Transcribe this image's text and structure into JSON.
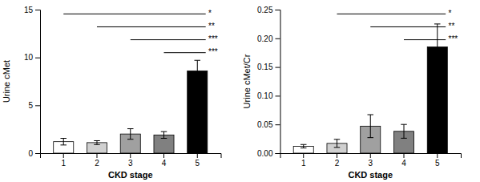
{
  "chart_data": [
    {
      "type": "bar",
      "categories": [
        "1",
        "2",
        "3",
        "4",
        "5"
      ],
      "values": [
        1.2,
        1.1,
        2.0,
        1.9,
        8.6
      ],
      "errors": [
        0.35,
        0.2,
        0.55,
        0.35,
        1.1
      ],
      "colors": [
        "#ffffff",
        "#d0d0d0",
        "#a0a0a0",
        "#808080",
        "#000000"
      ],
      "xlabel": "CKD stage",
      "ylabel": "Urine cMet",
      "ylim": [
        0,
        15
      ],
      "yticks": [
        0,
        5,
        10,
        15
      ],
      "annotations": [
        {
          "text": "*",
          "x1": "1",
          "x2": "5",
          "y": 14.55
        },
        {
          "text": "**",
          "x1": "2",
          "x2": "5",
          "y": 13.2
        },
        {
          "text": "***",
          "x1": "3",
          "x2": "5",
          "y": 11.85
        },
        {
          "text": "***",
          "x1": "4",
          "x2": "5",
          "y": 10.5
        }
      ]
    },
    {
      "type": "bar",
      "categories": [
        "1",
        "2",
        "3",
        "4",
        "5"
      ],
      "values": [
        0.012,
        0.017,
        0.047,
        0.038,
        0.185
      ],
      "errors": [
        0.003,
        0.007,
        0.02,
        0.012,
        0.04
      ],
      "colors": [
        "#ffffff",
        "#d0d0d0",
        "#a0a0a0",
        "#808080",
        "#000000"
      ],
      "xlabel": "CKD stage",
      "ylabel": "Urine cMet/Cr",
      "ylim": [
        0,
        0.25
      ],
      "yticks": [
        {
          "value": 0,
          "label": "0.00"
        },
        {
          "value": 0.05,
          "label": "0.05"
        },
        {
          "value": 0.1,
          "label": "0.10"
        },
        {
          "value": 0.15,
          "label": "0.15"
        },
        {
          "value": 0.2,
          "label": "0.20"
        },
        {
          "value": 0.25,
          "label": "0.25"
        }
      ],
      "annotations": [
        {
          "text": "*",
          "x1": "2",
          "x2": "5",
          "y": 0.2425
        },
        {
          "text": "**",
          "x1": "3",
          "x2": "5",
          "y": 0.22
        },
        {
          "text": "***",
          "x1": "4",
          "x2": "5",
          "y": 0.1975
        }
      ]
    }
  ]
}
